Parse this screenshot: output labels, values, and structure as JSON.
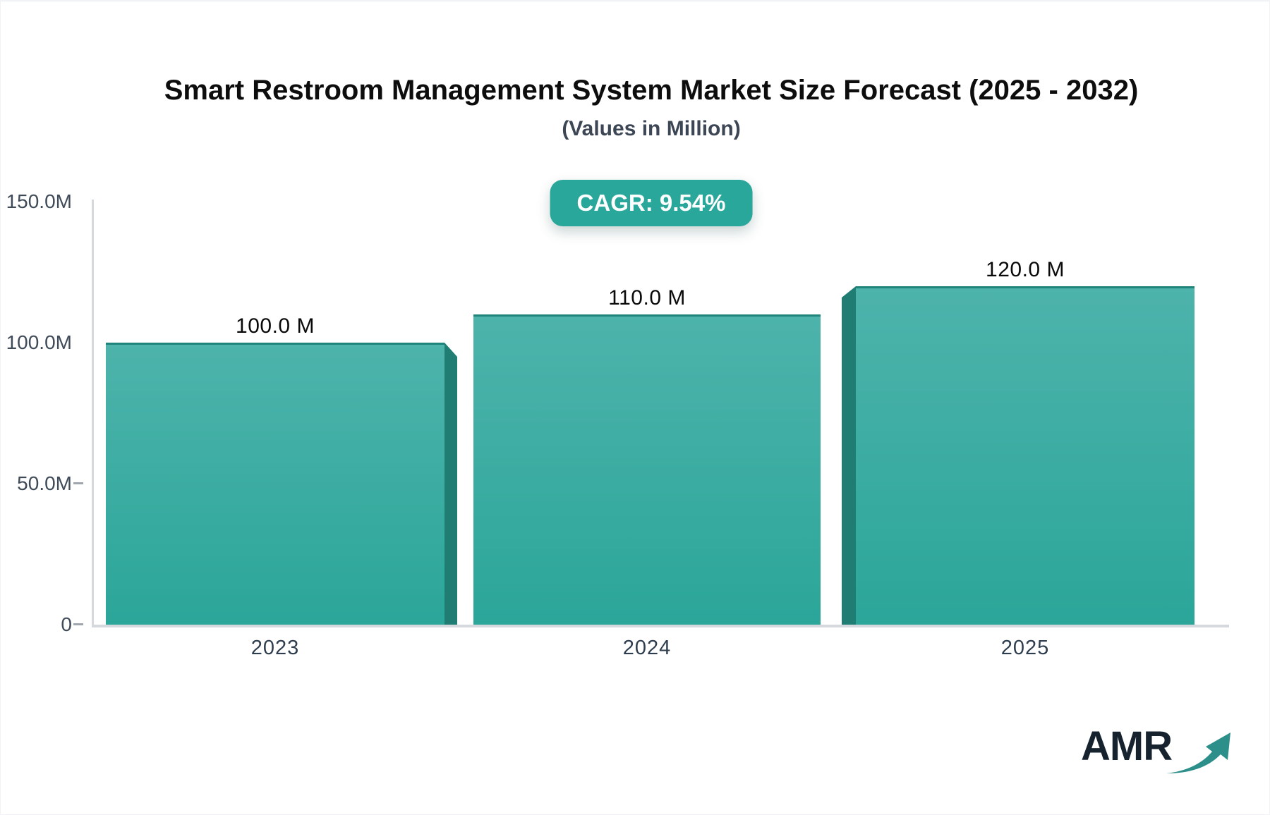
{
  "chart_data": {
    "type": "bar",
    "title": "Smart Restroom Management System Market Size Forecast (2025 - 2032)",
    "subtitle": "(Values in Million)",
    "annotation": "CAGR: 9.54%",
    "categories": [
      "2023",
      "2024",
      "2025"
    ],
    "values": [
      100.0,
      110.0,
      120.0
    ],
    "value_labels": [
      "100.0 M",
      "110.0 M",
      "120.0 M"
    ],
    "ylim": [
      0,
      150
    ],
    "yticks": [
      {
        "value": 150,
        "label": "150.0M",
        "dash": false
      },
      {
        "value": 100,
        "label": "100.0M",
        "dash": false
      },
      {
        "value": 50,
        "label": "50.0M",
        "dash": true
      },
      {
        "value": 0,
        "label": "0",
        "dash": true
      }
    ],
    "grid": false,
    "legend": false,
    "bar_3d_sides": [
      "right",
      "none",
      "left"
    ],
    "colors": {
      "bar_top": "#4db3ab",
      "bar_bottom": "#2ba699",
      "bar_side": "#1f7d73",
      "bar_top_border": "#1f857b",
      "axis_line": "#d5d8dd",
      "tick": "#9fa6ae",
      "y_label": "#3f4b59",
      "year_label": "#2f3e4e",
      "value_label": "#0a0a0a",
      "title": "#0d0d0d",
      "subtitle": "#3c4654"
    }
  },
  "badge": {
    "label": "CAGR: 9.54%",
    "bg": "#2aa79b",
    "text_color": "#ffffff"
  },
  "logo": {
    "text": "AMR",
    "color": "#16232e",
    "arrow_color": "#2d8f8a"
  }
}
